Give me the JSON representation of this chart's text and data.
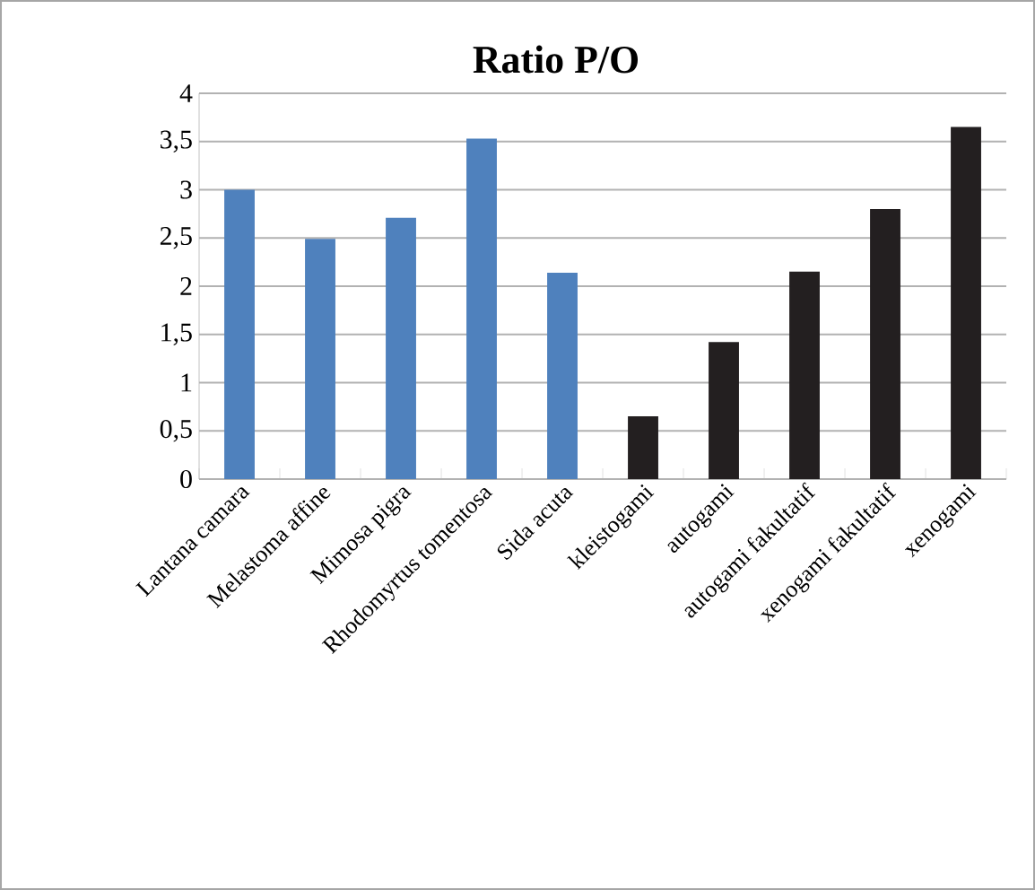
{
  "chart_data": {
    "type": "bar",
    "title": "Ratio P/O",
    "categories": [
      "Lantana camara",
      "Melastoma affine",
      "Mimosa pigra",
      "Rhodomyrtus tomentosa",
      "Sida acuta",
      "kleistogami",
      "autogami",
      "autogami fakultatif",
      "xenogami fakultatif",
      "xenogami"
    ],
    "values": [
      3.0,
      2.49,
      2.71,
      3.53,
      2.14,
      0.65,
      1.42,
      2.15,
      2.8,
      3.65
    ],
    "colors": [
      "#4f81bd",
      "#4f81bd",
      "#4f81bd",
      "#4f81bd",
      "#4f81bd",
      "#231f20",
      "#231f20",
      "#231f20",
      "#231f20",
      "#231f20"
    ],
    "ylim": [
      0,
      4
    ],
    "yticks": [
      0,
      {
        "value": 0.5,
        "label": "0,5"
      },
      1,
      {
        "value": 1.5,
        "label": "1,5"
      },
      2,
      {
        "value": 2.5,
        "label": "2,5"
      },
      3,
      {
        "value": 3.5,
        "label": "3,5"
      },
      4
    ],
    "grid": "y"
  }
}
